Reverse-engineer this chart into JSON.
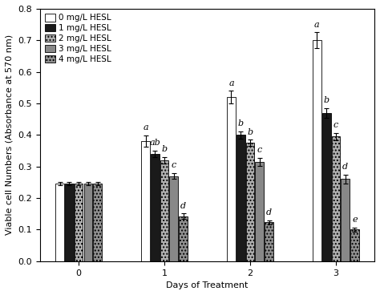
{
  "days": [
    0,
    1,
    2,
    3
  ],
  "day_labels": [
    "0",
    "1",
    "2",
    "3"
  ],
  "xlabel": "Days of Treatment",
  "ylabel": "Viable cell Numbers (Absorbance at 570 nm)",
  "ylim": [
    0,
    0.8
  ],
  "yticks": [
    0.0,
    0.1,
    0.2,
    0.3,
    0.4,
    0.5,
    0.6,
    0.7,
    0.8
  ],
  "legend_labels": [
    "0 mg/L HESL",
    "1 mg/L HESL",
    "2 mg/L HESL",
    "3 mg/L HESL",
    "4 mg/L HESL"
  ],
  "values": [
    [
      0.245,
      0.245,
      0.245,
      0.245,
      0.245
    ],
    [
      0.38,
      0.34,
      0.32,
      0.27,
      0.143
    ],
    [
      0.52,
      0.4,
      0.375,
      0.315,
      0.123
    ],
    [
      0.7,
      0.47,
      0.395,
      0.26,
      0.1
    ]
  ],
  "errors": [
    [
      0.005,
      0.005,
      0.005,
      0.005,
      0.005
    ],
    [
      0.018,
      0.01,
      0.01,
      0.01,
      0.008
    ],
    [
      0.02,
      0.012,
      0.01,
      0.012,
      0.007
    ],
    [
      0.025,
      0.015,
      0.012,
      0.015,
      0.007
    ]
  ],
  "significance_labels": [
    [
      "",
      "",
      "",
      "",
      ""
    ],
    [
      "a",
      "ab",
      "b",
      "c",
      "d"
    ],
    [
      "a",
      "b",
      "b",
      "c",
      "d"
    ],
    [
      "a",
      "b",
      "c",
      "d",
      "e"
    ]
  ],
  "colors": [
    "#ffffff",
    "#1a1a1a",
    "#b0b0b0",
    "#888888",
    "#909090"
  ],
  "hatches": [
    null,
    null,
    "....",
    null,
    "...."
  ],
  "edgecolors": [
    "#000000",
    "#000000",
    "#000000",
    "#000000",
    "#000000"
  ],
  "bar_width": 0.1,
  "fontsize_axis": 8,
  "fontsize_legend": 7.5,
  "fontsize_ticks": 8,
  "fontsize_sig": 8,
  "background_color": "#ffffff",
  "group_center_offsets": [
    -0.22,
    -0.11,
    0.0,
    0.11,
    0.22
  ]
}
